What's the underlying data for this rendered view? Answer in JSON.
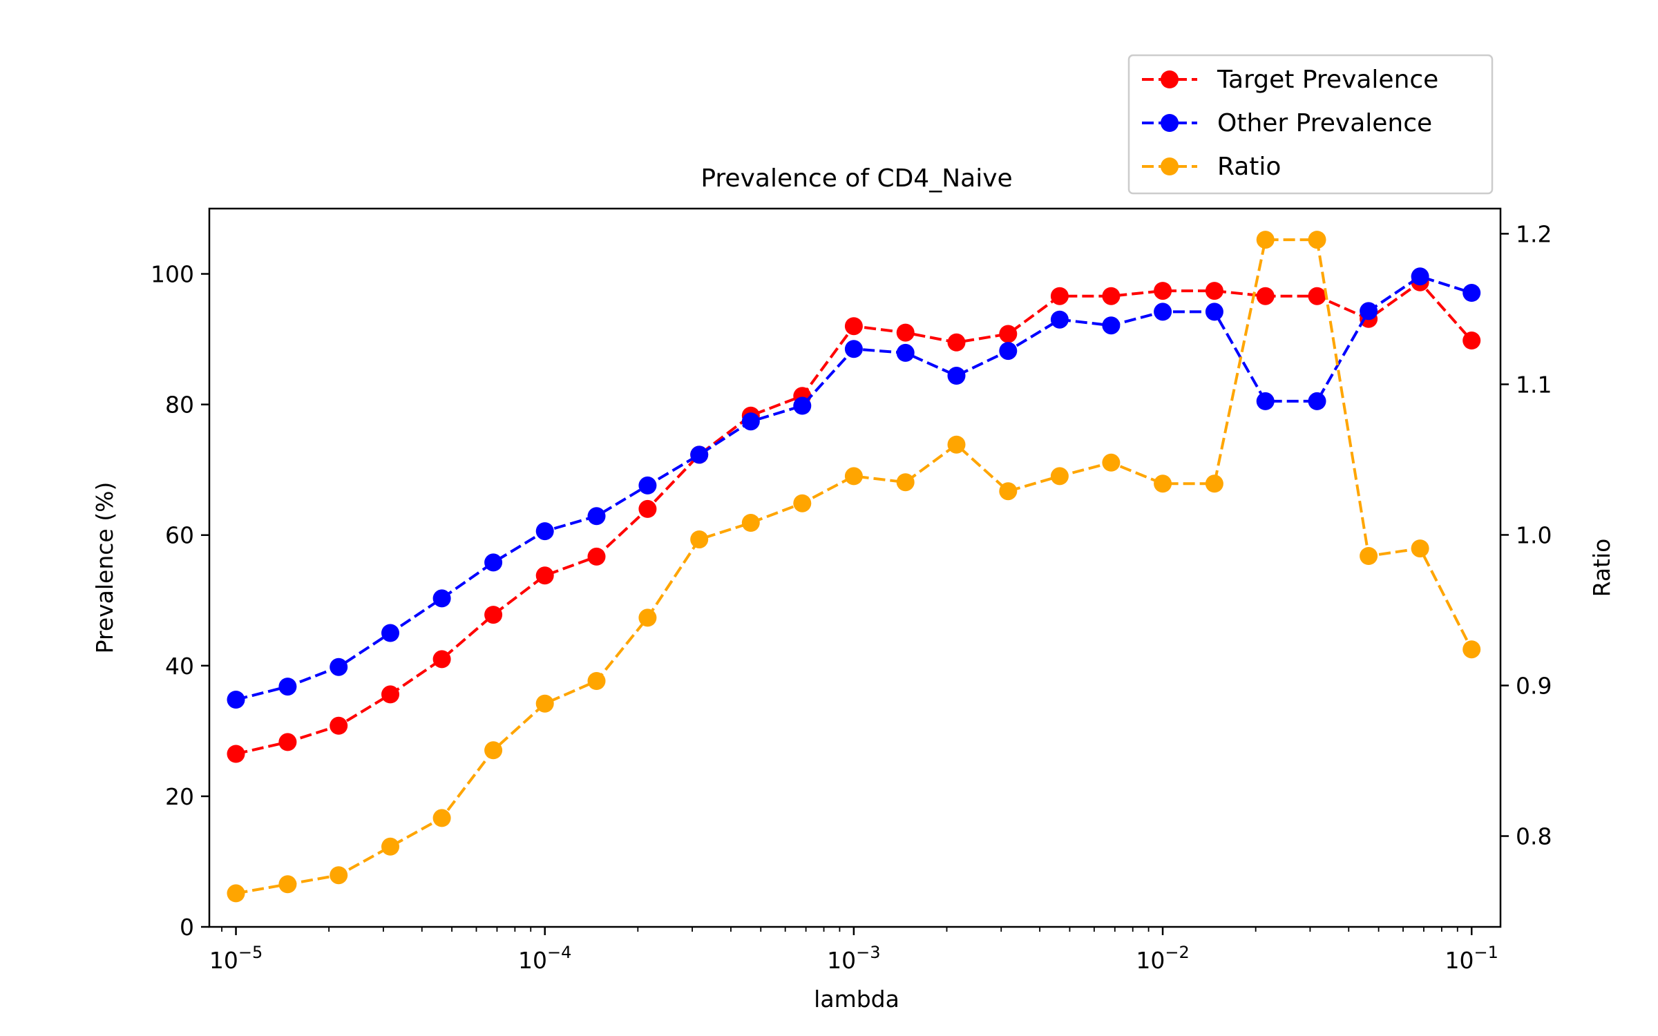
{
  "chart_data": {
    "type": "line",
    "title": "Prevalence of CD4_Naive",
    "xlabel": "lambda",
    "ylabel": "Prevalence (%)",
    "y2label": "Ratio",
    "xscale": "log",
    "xlim": [
      8.2e-06,
      0.124
    ],
    "ylim": [
      0,
      110
    ],
    "y2lim": [
      0.7397,
      1.2167
    ],
    "x_ticks": [
      {
        "value": 1e-05,
        "base": "10",
        "exp": "−5"
      },
      {
        "value": 0.0001,
        "base": "10",
        "exp": "−4"
      },
      {
        "value": 0.001,
        "base": "10",
        "exp": "−3"
      },
      {
        "value": 0.01,
        "base": "10",
        "exp": "−2"
      },
      {
        "value": 0.1,
        "base": "10",
        "exp": "−1"
      }
    ],
    "y_ticks": [
      {
        "value": 0,
        "label": "0"
      },
      {
        "value": 20,
        "label": "20"
      },
      {
        "value": 40,
        "label": "40"
      },
      {
        "value": 60,
        "label": "60"
      },
      {
        "value": 80,
        "label": "80"
      },
      {
        "value": 100,
        "label": "100"
      }
    ],
    "y2_ticks": [
      {
        "value": 0.8,
        "label": "0.8"
      },
      {
        "value": 0.9,
        "label": "0.9"
      },
      {
        "value": 1.0,
        "label": "1.0"
      },
      {
        "value": 1.1,
        "label": "1.1"
      },
      {
        "value": 1.2,
        "label": "1.2"
      }
    ],
    "x": [
      1e-05,
      1.47e-05,
      2.15e-05,
      3.16e-05,
      4.64e-05,
      6.81e-05,
      0.0001,
      0.000147,
      0.000215,
      0.000316,
      0.000464,
      0.000681,
      0.001,
      0.00147,
      0.00215,
      0.00316,
      0.00464,
      0.00681,
      0.01,
      0.0147,
      0.0215,
      0.0316,
      0.0464,
      0.0681,
      0.1
    ],
    "series": [
      {
        "name": "Target Prevalence",
        "color": "#ff0000",
        "axis": "left",
        "values": [
          26.5,
          28.3,
          30.8,
          35.6,
          41.0,
          47.8,
          53.8,
          56.7,
          64.0,
          72.3,
          78.3,
          81.3,
          92.0,
          91.0,
          89.5,
          90.8,
          96.6,
          96.6,
          97.4,
          97.4,
          96.6,
          96.6,
          93.1,
          98.7,
          89.8
        ]
      },
      {
        "name": "Other Prevalence",
        "color": "#0000ff",
        "axis": "left",
        "values": [
          34.8,
          36.8,
          39.8,
          45.0,
          50.3,
          55.8,
          60.6,
          62.9,
          67.6,
          72.3,
          77.4,
          79.8,
          88.5,
          87.9,
          84.4,
          88.2,
          93.0,
          92.1,
          94.2,
          94.2,
          80.5,
          80.5,
          94.3,
          99.6,
          97.1
        ]
      },
      {
        "name": "Ratio",
        "color": "#ffa500",
        "axis": "right",
        "values": [
          0.762,
          0.768,
          0.774,
          0.793,
          0.812,
          0.857,
          0.888,
          0.903,
          0.945,
          0.997,
          1.008,
          1.021,
          1.039,
          1.035,
          1.06,
          1.029,
          1.039,
          1.048,
          1.034,
          1.034,
          1.196,
          1.196,
          0.986,
          0.991,
          0.924
        ]
      }
    ],
    "legend": {
      "position": "top-right"
    }
  }
}
